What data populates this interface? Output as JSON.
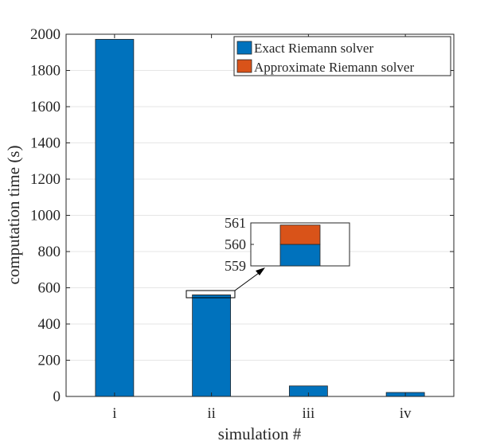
{
  "chart_data": {
    "type": "bar",
    "stacked": true,
    "categories": [
      "i",
      "ii",
      "iii",
      "iv"
    ],
    "series": [
      {
        "name": "Exact Riemann solver",
        "color": "#0072BD",
        "values": [
          1972,
          560,
          58,
          22
        ]
      },
      {
        "name": "Approximate Riemann solver",
        "color": "#D95319",
        "values": [
          0,
          0.9,
          0,
          0
        ]
      }
    ],
    "xlabel": "simulation #",
    "ylabel": "computation time (s)",
    "ylim": [
      0,
      2000
    ],
    "yticks": [
      0,
      200,
      400,
      600,
      800,
      1000,
      1200,
      1400,
      1600,
      1800,
      2000
    ],
    "grid": true,
    "legend_position": "top-right",
    "inset": {
      "category": "ii",
      "ylim": [
        559,
        561
      ],
      "yticks": [
        559,
        560,
        561
      ],
      "yticklabels": [
        "559",
        "560",
        "561"
      ]
    }
  }
}
